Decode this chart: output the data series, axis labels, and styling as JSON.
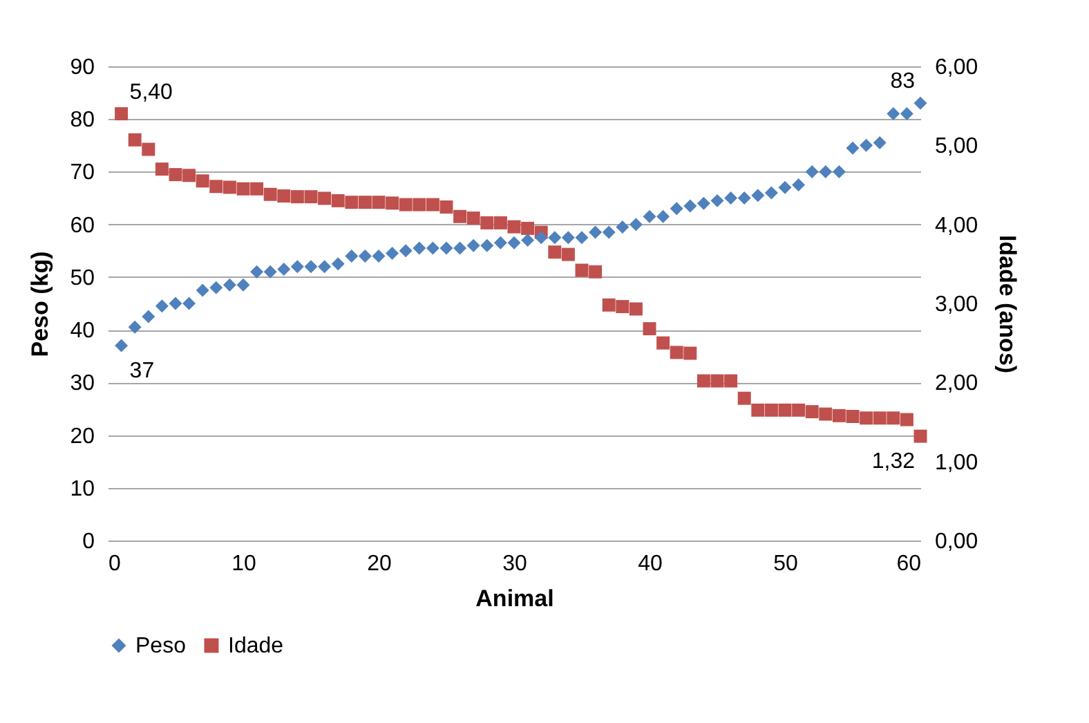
{
  "chart_data": {
    "type": "scatter",
    "xlabel": "Animal",
    "ylabel": "Peso (kg)",
    "y2label": "Idade (anos)",
    "x": [
      1,
      2,
      3,
      4,
      5,
      6,
      7,
      8,
      9,
      10,
      11,
      12,
      13,
      14,
      15,
      16,
      17,
      18,
      19,
      20,
      21,
      22,
      23,
      24,
      25,
      26,
      27,
      28,
      29,
      30,
      31,
      32,
      33,
      34,
      35,
      36,
      37,
      38,
      39,
      40,
      41,
      42,
      43,
      44,
      45,
      46,
      47,
      48,
      49,
      50,
      51,
      52,
      53,
      54,
      55,
      56,
      57,
      58,
      59,
      60
    ],
    "xlim": [
      0,
      60
    ],
    "xticks": [
      0,
      10,
      20,
      30,
      40,
      50,
      60
    ],
    "ylim": [
      0,
      90
    ],
    "yticks": [
      0,
      10,
      20,
      30,
      40,
      50,
      60,
      70,
      80,
      90
    ],
    "y2lim": [
      0,
      6
    ],
    "y2ticks": [
      {
        "value": 0,
        "label": "0,00"
      },
      {
        "value": 1,
        "label": "1,00"
      },
      {
        "value": 2,
        "label": "2,00"
      },
      {
        "value": 3,
        "label": "3,00"
      },
      {
        "value": 4,
        "label": "4,00"
      },
      {
        "value": 5,
        "label": "5,00"
      },
      {
        "value": 6,
        "label": "6,00"
      }
    ],
    "grid": "y",
    "legend": "bottom",
    "series": [
      {
        "name": "Peso",
        "color": "#4f81bd",
        "marker": "diamond",
        "values": [
          37,
          40.5,
          42.5,
          44.5,
          45,
          45,
          47.5,
          48,
          48.5,
          48.5,
          51,
          51,
          51.5,
          52,
          52,
          52,
          52.5,
          54,
          54,
          54,
          54.5,
          55,
          55.5,
          55.5,
          55.5,
          55.5,
          56,
          56,
          56.5,
          56.5,
          57,
          57.5,
          57.5,
          57.5,
          57.5,
          58.5,
          58.5,
          59.5,
          60,
          61.5,
          61.5,
          63,
          63.5,
          64,
          64.5,
          65,
          65,
          65.5,
          66,
          67,
          67.5,
          70,
          70,
          70,
          74.5,
          75,
          75.5,
          81,
          81,
          83
        ],
        "value_labels": [
          "37",
          null,
          null,
          null,
          null,
          null,
          null,
          null,
          null,
          null,
          null,
          null,
          null,
          null,
          null,
          null,
          null,
          null,
          null,
          null,
          null,
          null,
          null,
          null,
          null,
          null,
          null,
          null,
          null,
          null,
          null,
          null,
          null,
          null,
          null,
          null,
          null,
          null,
          null,
          null,
          null,
          null,
          null,
          null,
          null,
          null,
          null,
          null,
          null,
          null,
          null,
          null,
          null,
          null,
          null,
          null,
          null,
          null,
          null,
          "83"
        ]
      },
      {
        "name": "Idade",
        "color": "#c0504d",
        "marker": "square",
        "axis": "y2",
        "values": [
          5.4,
          5.07,
          4.95,
          4.7,
          4.63,
          4.62,
          4.55,
          4.48,
          4.47,
          4.45,
          4.45,
          4.38,
          4.36,
          4.35,
          4.35,
          4.33,
          4.3,
          4.28,
          4.28,
          4.28,
          4.27,
          4.25,
          4.25,
          4.25,
          4.22,
          4.1,
          4.08,
          4.02,
          4.02,
          3.97,
          3.95,
          3.9,
          3.65,
          3.62,
          3.42,
          3.4,
          2.98,
          2.96,
          2.93,
          2.68,
          2.5,
          2.38,
          2.37,
          2.02,
          2.02,
          2.02,
          1.8,
          1.65,
          1.65,
          1.65,
          1.65,
          1.63,
          1.6,
          1.58,
          1.57,
          1.55,
          1.55,
          1.55,
          1.53,
          1.32
        ],
        "value_labels": [
          "5,40",
          null,
          null,
          null,
          null,
          null,
          null,
          null,
          null,
          null,
          null,
          null,
          null,
          null,
          null,
          null,
          null,
          null,
          null,
          null,
          null,
          null,
          null,
          null,
          null,
          null,
          null,
          null,
          null,
          null,
          null,
          null,
          null,
          null,
          null,
          null,
          null,
          null,
          null,
          null,
          null,
          null,
          null,
          null,
          null,
          null,
          null,
          null,
          null,
          null,
          null,
          null,
          null,
          null,
          null,
          null,
          null,
          null,
          null,
          "1,32"
        ]
      }
    ]
  }
}
